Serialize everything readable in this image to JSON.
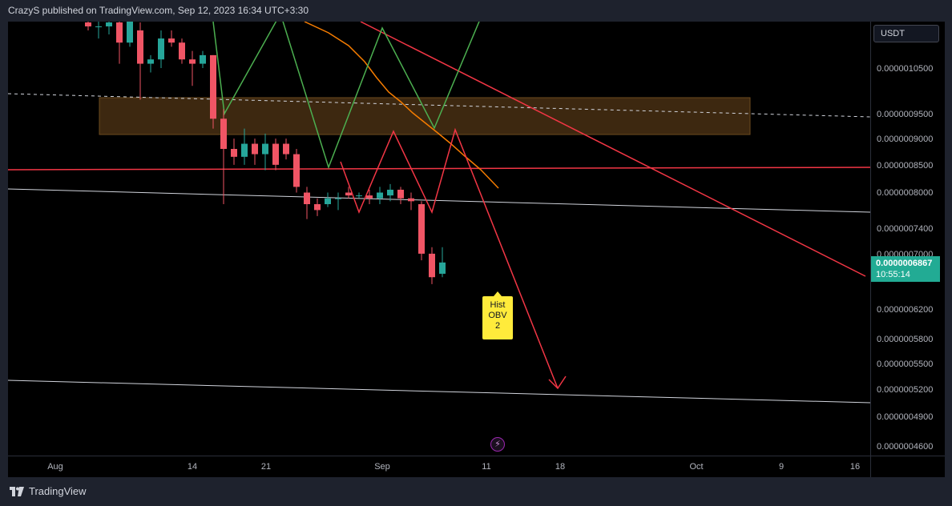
{
  "header": {
    "text": "CrazyS published on TradingView.com, Sep 12, 2023 16:34 UTC+3:30"
  },
  "currency_button": {
    "label": "USDT"
  },
  "last_price": {
    "value": "0.0000006867",
    "countdown": "10:55:14"
  },
  "indicator_label": {
    "lines": [
      "Hist",
      "OBV",
      "2"
    ]
  },
  "footer": {
    "brand": "TradingView"
  },
  "icons": {
    "flash": "lightning-icon",
    "logo": "tradingview-logo-icon"
  },
  "colors": {
    "up": "#26a69a",
    "down": "#f05565",
    "zone": "#3d2810",
    "green_line": "#4caf50",
    "orange_line": "#f57c00",
    "red_line": "#f23645",
    "white_line": "#d1d4dc",
    "label_bg": "#ffeb3b",
    "last_price_bg": "#22ab94"
  },
  "chart_data": {
    "type": "candlestick",
    "x_axis": {
      "ticks": [
        "Aug",
        "14",
        "21",
        "Sep",
        "11",
        "18",
        "Oct",
        "9",
        "16"
      ]
    },
    "y_axis": {
      "scale": "log",
      "ticks": [
        "0.0000010500",
        "0.0000009500",
        "0.0000009000",
        "0.0000008500",
        "0.0000008000",
        "0.0000007400",
        "0.0000007000",
        "0.0000006200",
        "0.0000005800",
        "0.0000005500",
        "0.0000005200",
        "0.0000004900",
        "0.0000004600"
      ]
    },
    "candles": [
      {
        "o": 1.16e-06,
        "h": 1.18e-06,
        "l": 1.14e-06,
        "c": 1.15e-06
      },
      {
        "o": 1.15e-06,
        "h": 1.17e-06,
        "l": 1.12e-06,
        "c": 1.15e-06
      },
      {
        "o": 1.15e-06,
        "h": 1.17e-06,
        "l": 1.13e-06,
        "c": 1.16e-06
      },
      {
        "o": 1.16e-06,
        "h": 1.17e-06,
        "l": 1.06e-06,
        "c": 1.11e-06
      },
      {
        "o": 1.11e-06,
        "h": 1.18e-06,
        "l": 1.1e-06,
        "c": 1.17e-06
      },
      {
        "o": 1.14e-06,
        "h": 1.16e-06,
        "l": 9.8e-07,
        "c": 1.06e-06
      },
      {
        "o": 1.06e-06,
        "h": 1.08e-06,
        "l": 1.04e-06,
        "c": 1.07e-06
      },
      {
        "o": 1.07e-06,
        "h": 1.14e-06,
        "l": 1.05e-06,
        "c": 1.12e-06
      },
      {
        "o": 1.12e-06,
        "h": 1.14e-06,
        "l": 1.1e-06,
        "c": 1.11e-06
      },
      {
        "o": 1.11e-06,
        "h": 1.12e-06,
        "l": 1.06e-06,
        "c": 1.07e-06
      },
      {
        "o": 1.07e-06,
        "h": 1.09e-06,
        "l": 1.01e-06,
        "c": 1.06e-06
      },
      {
        "o": 1.06e-06,
        "h": 1.09e-06,
        "l": 1.05e-06,
        "c": 1.08e-06
      },
      {
        "o": 1.08e-06,
        "h": 1.08e-06,
        "l": 9.2e-07,
        "c": 9.4e-07
      },
      {
        "o": 9.4e-07,
        "h": 9.6e-07,
        "l": 7.8e-07,
        "c": 8.8e-07
      },
      {
        "o": 8.8e-07,
        "h": 9e-07,
        "l": 8.5e-07,
        "c": 8.65e-07
      },
      {
        "o": 8.65e-07,
        "h": 9.2e-07,
        "l": 8.5e-07,
        "c": 8.9e-07
      },
      {
        "o": 8.9e-07,
        "h": 9e-07,
        "l": 8.5e-07,
        "c": 8.7e-07
      },
      {
        "o": 8.7e-07,
        "h": 9.1e-07,
        "l": 8.4e-07,
        "c": 8.9e-07
      },
      {
        "o": 8.9e-07,
        "h": 9e-07,
        "l": 8.4e-07,
        "c": 8.5e-07
      },
      {
        "o": 8.9e-07,
        "h": 9e-07,
        "l": 8.6e-07,
        "c": 8.7e-07
      },
      {
        "o": 8.7e-07,
        "h": 8.8e-07,
        "l": 8e-07,
        "c": 8.1e-07
      },
      {
        "o": 8e-07,
        "h": 8.1e-07,
        "l": 7.55e-07,
        "c": 7.8e-07
      },
      {
        "o": 7.8e-07,
        "h": 7.9e-07,
        "l": 7.6e-07,
        "c": 7.7e-07
      },
      {
        "o": 7.8e-07,
        "h": 8e-07,
        "l": 7.75e-07,
        "c": 7.9e-07
      },
      {
        "o": 7.9e-07,
        "h": 8e-07,
        "l": 7.7e-07,
        "c": 7.9e-07
      },
      {
        "o": 8e-07,
        "h": 8.1e-07,
        "l": 7.9e-07,
        "c": 7.95e-07
      },
      {
        "o": 7.95e-07,
        "h": 8e-07,
        "l": 7.9e-07,
        "c": 7.95e-07
      },
      {
        "o": 7.95e-07,
        "h": 8.05e-07,
        "l": 7.8e-07,
        "c": 7.9e-07
      },
      {
        "o": 7.9e-07,
        "h": 8.1e-07,
        "l": 7.8e-07,
        "c": 8e-07
      },
      {
        "o": 7.95e-07,
        "h": 8.15e-07,
        "l": 7.85e-07,
        "c": 8.05e-07
      },
      {
        "o": 8.05e-07,
        "h": 8.1e-07,
        "l": 7.8e-07,
        "c": 7.9e-07
      },
      {
        "o": 7.9e-07,
        "h": 8e-07,
        "l": 7.7e-07,
        "c": 7.85e-07
      },
      {
        "o": 7.8e-07,
        "h": 7.85e-07,
        "l": 6.9e-07,
        "c": 7e-07
      },
      {
        "o": 7e-07,
        "h": 7.1e-07,
        "l": 6.55e-07,
        "c": 6.65e-07
      },
      {
        "o": 6.7e-07,
        "h": 7.1e-07,
        "l": 6.65e-07,
        "c": 6.867e-07
      }
    ]
  }
}
